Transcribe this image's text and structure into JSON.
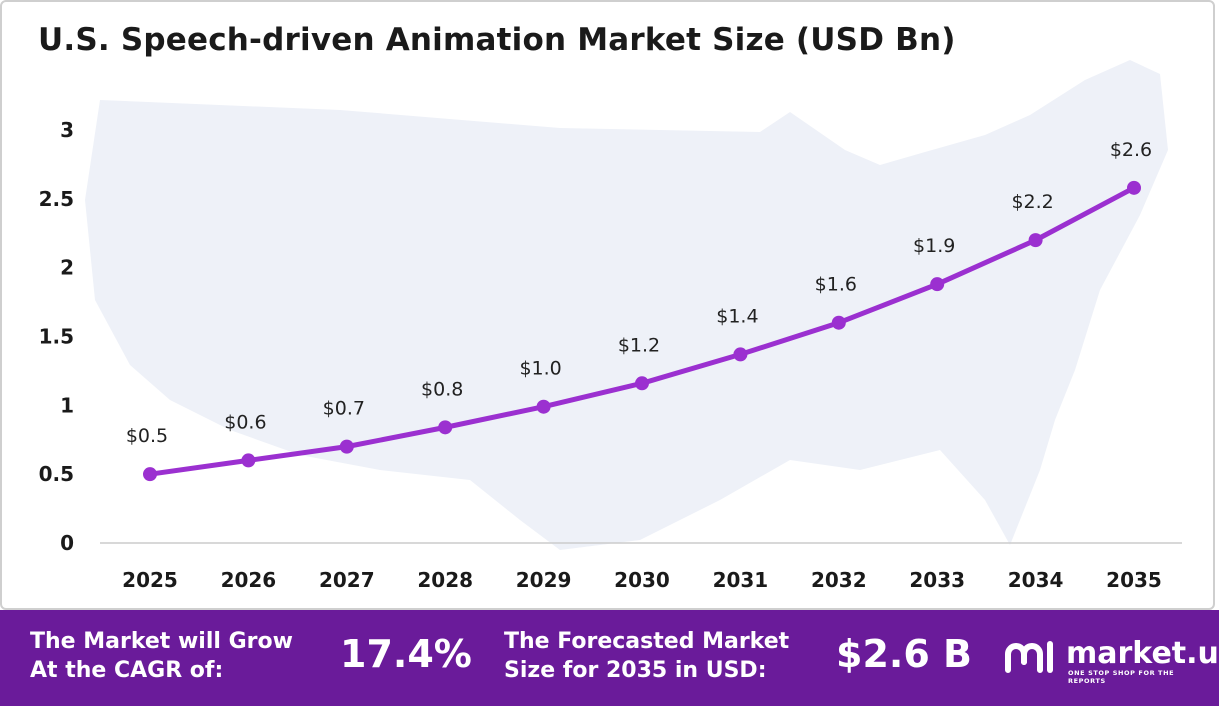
{
  "title": "U.S. Speech-driven Animation Market Size (USD Bn)",
  "chart_data": {
    "type": "line",
    "title": "U.S. Speech-driven Animation Market Size (USD Bn)",
    "xlabel": "",
    "ylabel": "",
    "categories": [
      "2025",
      "2026",
      "2027",
      "2028",
      "2029",
      "2030",
      "2031",
      "2032",
      "2033",
      "2034",
      "2035"
    ],
    "values": [
      0.5,
      0.6,
      0.7,
      0.84,
      0.99,
      1.16,
      1.37,
      1.6,
      1.88,
      2.2,
      2.58
    ],
    "data_labels": [
      "$0.5",
      "$0.6",
      "$0.7",
      "$0.8",
      "$1.0",
      "$1.2",
      "$1.4",
      "$1.6",
      "$1.9",
      "$2.2",
      "$2.6"
    ],
    "y_ticks": [
      "0",
      "0.5",
      "1",
      "1.5",
      "2",
      "2.5",
      "3"
    ],
    "ylim": [
      0,
      3
    ],
    "grid": false,
    "legend": "none",
    "colors": {
      "line": "#9b30d0",
      "marker": "#9b30d0",
      "background_map": "#eef1f8"
    }
  },
  "banner": {
    "cagr_text": "The Market will Grow\nAt the CAGR of:",
    "cagr_value": "17.4%",
    "forecast_text": "The Forecasted Market\nSize for 2035 in USD:",
    "forecast_value": "$2.6 B",
    "background": "#6a1b9a"
  },
  "logo": {
    "name": "market.us",
    "tagline": "ONE STOP SHOP FOR THE REPORTS"
  }
}
